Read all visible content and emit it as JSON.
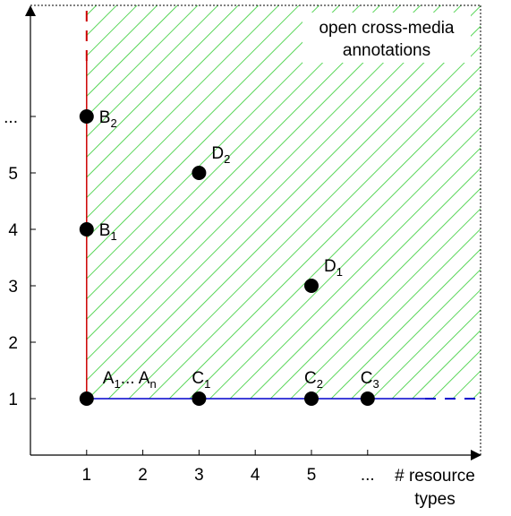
{
  "chart_data": {
    "type": "scatter",
    "xlabel": "# resource types",
    "xlabel_lines": [
      "# resource",
      "types"
    ],
    "ylabel": "",
    "xlim": [
      0,
      7
    ],
    "ylim": [
      0,
      7
    ],
    "x_ticks": [
      {
        "value": 1,
        "label": "1"
      },
      {
        "value": 2,
        "label": "2"
      },
      {
        "value": 3,
        "label": "3"
      },
      {
        "value": 4,
        "label": "4"
      },
      {
        "value": 5,
        "label": "5"
      },
      {
        "value": 6,
        "label": "..."
      }
    ],
    "y_ticks": [
      {
        "value": 1,
        "label": "1"
      },
      {
        "value": 2,
        "label": "2"
      },
      {
        "value": 3,
        "label": "3"
      },
      {
        "value": 4,
        "label": "4"
      },
      {
        "value": 5,
        "label": "5"
      },
      {
        "value": 6,
        "label": "..."
      }
    ],
    "points": [
      {
        "id": "A",
        "x": 1,
        "y": 1,
        "label_main": "A",
        "label_sub": "1",
        "label_mid": "... A",
        "label_sub2": "n"
      },
      {
        "id": "B1",
        "x": 1,
        "y": 4,
        "label_main": "B",
        "label_sub": "1"
      },
      {
        "id": "B2",
        "x": 1,
        "y": 6,
        "label_main": "B",
        "label_sub": "2"
      },
      {
        "id": "C1",
        "x": 3,
        "y": 1,
        "label_main": "C",
        "label_sub": "1"
      },
      {
        "id": "C2",
        "x": 5,
        "y": 1,
        "label_main": "C",
        "label_sub": "2"
      },
      {
        "id": "C3",
        "x": 6,
        "y": 1,
        "label_main": "C",
        "label_sub": "3"
      },
      {
        "id": "D1",
        "x": 5,
        "y": 3,
        "label_main": "D",
        "label_sub": "1"
      },
      {
        "id": "D2",
        "x": 3,
        "y": 5,
        "label_main": "D",
        "label_sub": "2"
      }
    ],
    "region": {
      "x_from": 1,
      "y_from": 1,
      "label_lines": [
        "open cross-media",
        "annotations"
      ],
      "fill_pattern": "diagonal-hatch",
      "hatch_color": "#33cc33"
    },
    "colors": {
      "vertical_line": "#cc0000",
      "horizontal_line": "#0000cc",
      "points": "#000000",
      "axes": "#000000"
    },
    "grid": false,
    "legend": "none"
  }
}
